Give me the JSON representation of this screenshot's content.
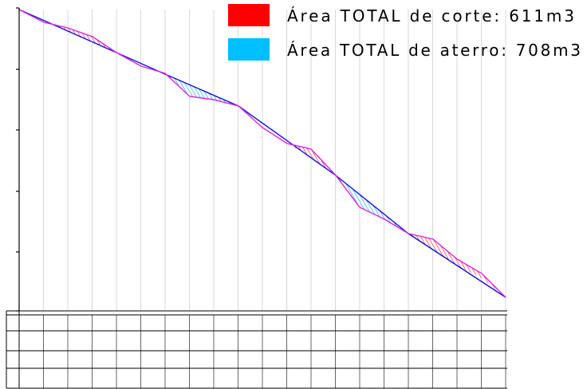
{
  "legend": {
    "items": [
      {
        "label": "Área TOTAL de corte: 611m3",
        "color": "#ff0000"
      },
      {
        "label": "Área TOTAL de aterro: 708m3",
        "color": "#00bfff"
      }
    ]
  }
}
